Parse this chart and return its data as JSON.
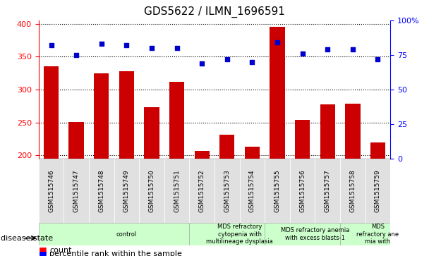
{
  "title": "GDS5622 / ILMN_1696591",
  "samples": [
    "GSM1515746",
    "GSM1515747",
    "GSM1515748",
    "GSM1515749",
    "GSM1515750",
    "GSM1515751",
    "GSM1515752",
    "GSM1515753",
    "GSM1515754",
    "GSM1515755",
    "GSM1515756",
    "GSM1515757",
    "GSM1515758",
    "GSM1515759"
  ],
  "counts": [
    335,
    251,
    325,
    328,
    273,
    312,
    207,
    232,
    213,
    395,
    254,
    278,
    279,
    220
  ],
  "percentile_ranks": [
    82,
    75,
    83,
    82,
    80,
    80,
    69,
    72,
    70,
    84,
    76,
    79,
    79,
    72
  ],
  "disease_groups": [
    {
      "label": "control",
      "start": 0,
      "end": 6,
      "color": "#ccffcc"
    },
    {
      "label": "MDS refractory\ncytopenia with\nmultilineage dysplasia",
      "start": 6,
      "end": 9,
      "color": "#ccffcc"
    },
    {
      "label": "MDS refractory anemia\nwith excess blasts-1",
      "start": 9,
      "end": 12,
      "color": "#ccffcc"
    },
    {
      "label": "MDS\nrefractory ane\nmia with",
      "start": 12,
      "end": 14,
      "color": "#ccffcc"
    }
  ],
  "ylim_left": [
    195,
    405
  ],
  "ylim_right": [
    0,
    100
  ],
  "yticks_left": [
    200,
    250,
    300,
    350,
    400
  ],
  "yticks_right": [
    0,
    25,
    50,
    75,
    100
  ],
  "bar_color": "#cc0000",
  "dot_color": "#0000cc",
  "bar_bottom": 195,
  "bg_color": "#e0e0e0"
}
